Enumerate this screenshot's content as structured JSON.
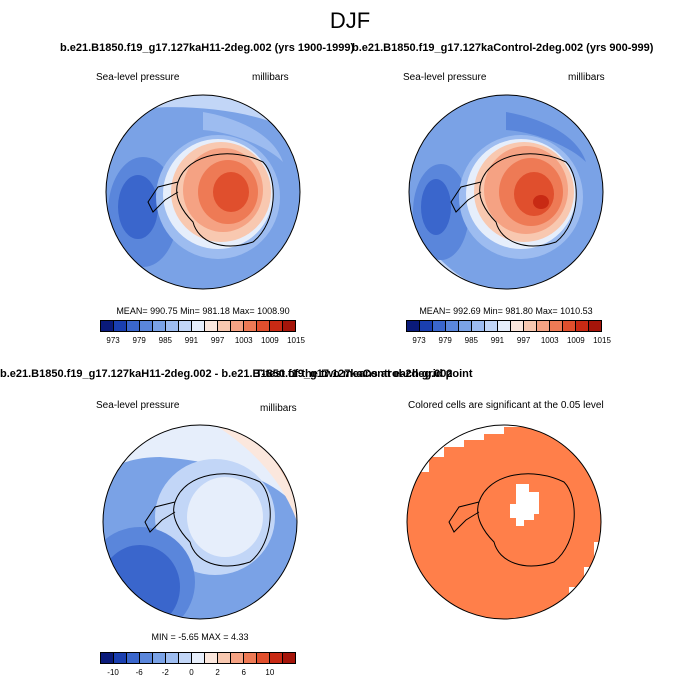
{
  "figure": {
    "title": "DJF",
    "panel_tl": {
      "header": "b.e21.B1850.f19_g17.127kaH11-2deg.002 (yrs 1900-1999)",
      "left_label": "Sea-level pressure",
      "right_label": "millibars",
      "stats": "MEAN= 990.75  Min= 981.18  Max= 1008.90"
    },
    "panel_tr": {
      "header": "b.e21.B1850.f19_g17.127kaControl-2deg.002 (yrs 900-999)",
      "left_label": "Sea-level pressure",
      "right_label": "millibars",
      "stats": "MEAN= 992.69  Min= 981.80  Max= 1010.53"
    },
    "panel_bl": {
      "header": "b.e21.B1850.f19_g17.127kaH11-2deg.002 - b.e21.B1850.f19_g17.127kaControl-2deg.002",
      "left_label": "Sea-level pressure",
      "right_label": "millibars",
      "stats": "MIN =  -5.65 MAX =   4.33"
    },
    "panel_br": {
      "header": "T-test of the two means at each grid point",
      "label": "Colored cells are significant at the 0.05 level"
    },
    "colorbar_abs": {
      "ticks": [
        "973",
        "979",
        "985",
        "991",
        "997",
        "1003",
        "1009",
        "1015"
      ],
      "colors": [
        "#0a1a7a",
        "#1a3fb0",
        "#3a66cc",
        "#5a86db",
        "#7aa2e6",
        "#9dbcf0",
        "#c2d6f7",
        "#e6eefb",
        "#fbe7dd",
        "#f8c8b0",
        "#f5a283",
        "#ee7a55",
        "#e04f2d",
        "#c82a14",
        "#a5150a"
      ]
    },
    "colorbar_diff": {
      "ticks": [
        "-10",
        "-6",
        "-2",
        "0",
        "2",
        "6",
        "10"
      ],
      "colors": [
        "#0a1a7a",
        "#1a3fb0",
        "#3a66cc",
        "#5a86db",
        "#7aa2e6",
        "#9dbcf0",
        "#c2d6f7",
        "#e6eefb",
        "#fbe7dd",
        "#f8c8b0",
        "#f5a283",
        "#ee7a55",
        "#e04f2d",
        "#c82a14",
        "#a5150a"
      ]
    },
    "colors": {
      "significant": "#ff7f4a"
    }
  }
}
